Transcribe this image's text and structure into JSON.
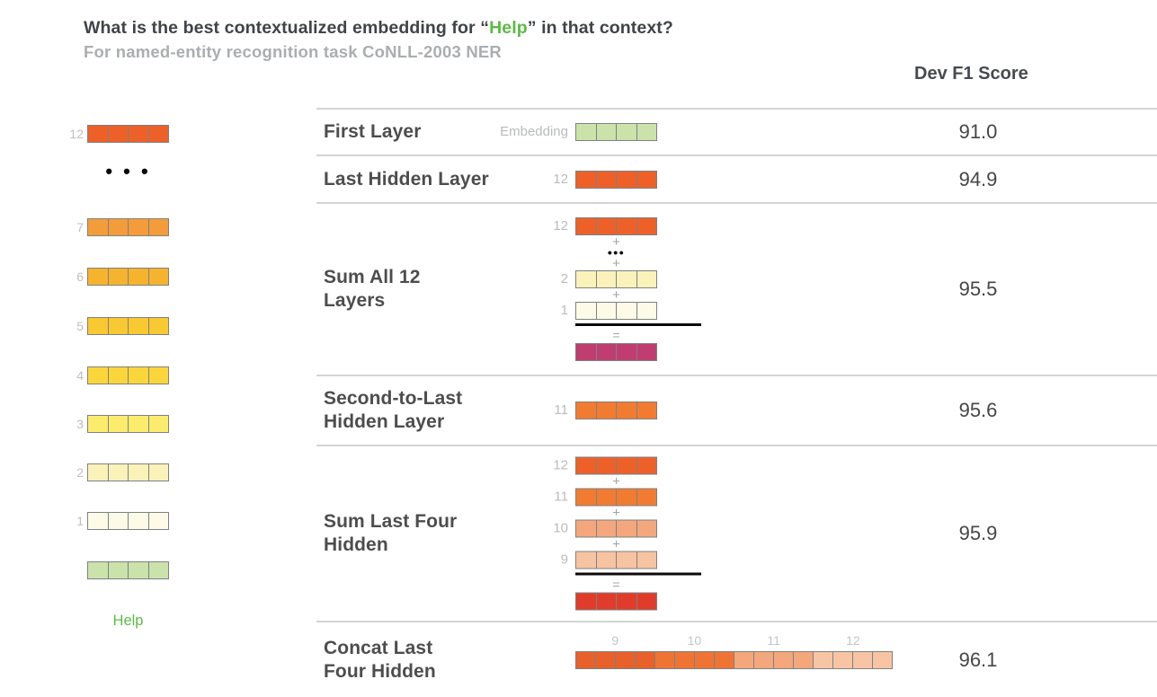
{
  "title": {
    "prefix": "What is the best contextualized embedding for “",
    "word": "Help",
    "suffix": "” in that context?"
  },
  "subtitle": "For named-entity recognition task CoNLL-2003 NER",
  "score_header": "Dev F1 Score",
  "help_word": "Help",
  "glyphs": {
    "plus": "+",
    "equals": "=",
    "dots": "• • •",
    "dots_small": "•••"
  },
  "colors": {
    "highlight_green": "#5CBA46",
    "separator": "#D4D4D4",
    "sum_line": "#0A0A0A",
    "sum_all_result": "#BF3E6F",
    "sum_four_result": "#E03C2B"
  },
  "left_stack": {
    "items": [
      {
        "label": "12",
        "color": "#ED6129",
        "cells": 4
      },
      {
        "label": "7",
        "color": "#F49C3A",
        "cells": 4
      },
      {
        "label": "6",
        "color": "#F6B42E",
        "cells": 4
      },
      {
        "label": "5",
        "color": "#F8C931",
        "cells": 4
      },
      {
        "label": "4",
        "color": "#FBD63B",
        "cells": 4
      },
      {
        "label": "3",
        "color": "#FCEC6E",
        "cells": 4
      },
      {
        "label": "2",
        "color": "#FAF2B9",
        "cells": 4
      },
      {
        "label": "1",
        "color": "#FDFBE7",
        "cells": 4
      },
      {
        "label": "",
        "color": "#CBE2AA",
        "cells": 4
      }
    ]
  },
  "rows": [
    {
      "label": "First Layer",
      "score": "91.0",
      "figure": {
        "type": "single",
        "tag": "Embedding",
        "vector": {
          "color": "#CBE2AA",
          "cells": 4
        }
      }
    },
    {
      "label": "Last Hidden Layer",
      "score": "94.9",
      "figure": {
        "type": "single",
        "tag": "12",
        "vector": {
          "color": "#ED6129",
          "cells": 4
        }
      }
    },
    {
      "label": "Sum All 12\nLayers",
      "score": "95.5",
      "figure": {
        "type": "sum",
        "items": [
          {
            "tag": "12",
            "color": "#ED6129",
            "cells": 4
          },
          {
            "tag": "2",
            "color": "#FAF2B9",
            "cells": 4
          },
          {
            "tag": "1",
            "color": "#FDFBE7",
            "cells": 4
          }
        ],
        "result": {
          "color": "#BF3E6F",
          "cells": 4
        }
      }
    },
    {
      "label": "Second-to-Last\nHidden Layer",
      "score": "95.6",
      "figure": {
        "type": "single",
        "tag": "11",
        "vector": {
          "color": "#F17C31",
          "cells": 4
        }
      }
    },
    {
      "label": "Sum Last Four\nHidden",
      "score": "95.9",
      "figure": {
        "type": "sum",
        "items": [
          {
            "tag": "12",
            "color": "#ED6129",
            "cells": 4
          },
          {
            "tag": "11",
            "color": "#F17C31",
            "cells": 4
          },
          {
            "tag": "10",
            "color": "#F4A77C",
            "cells": 4
          },
          {
            "tag": "9",
            "color": "#F7C3A1",
            "cells": 4
          }
        ],
        "result": {
          "color": "#E03C2B",
          "cells": 4
        }
      }
    },
    {
      "label": "Concat Last\nFour Hidden",
      "score": "96.1",
      "figure": {
        "type": "concat",
        "cells_per_group": 4,
        "groups": [
          {
            "tag": "9",
            "color": "#E9612A"
          },
          {
            "tag": "10",
            "color": "#EF7434"
          },
          {
            "tag": "11",
            "color": "#F3A77B"
          },
          {
            "tag": "12",
            "color": "#F7C5A4"
          }
        ]
      }
    }
  ]
}
